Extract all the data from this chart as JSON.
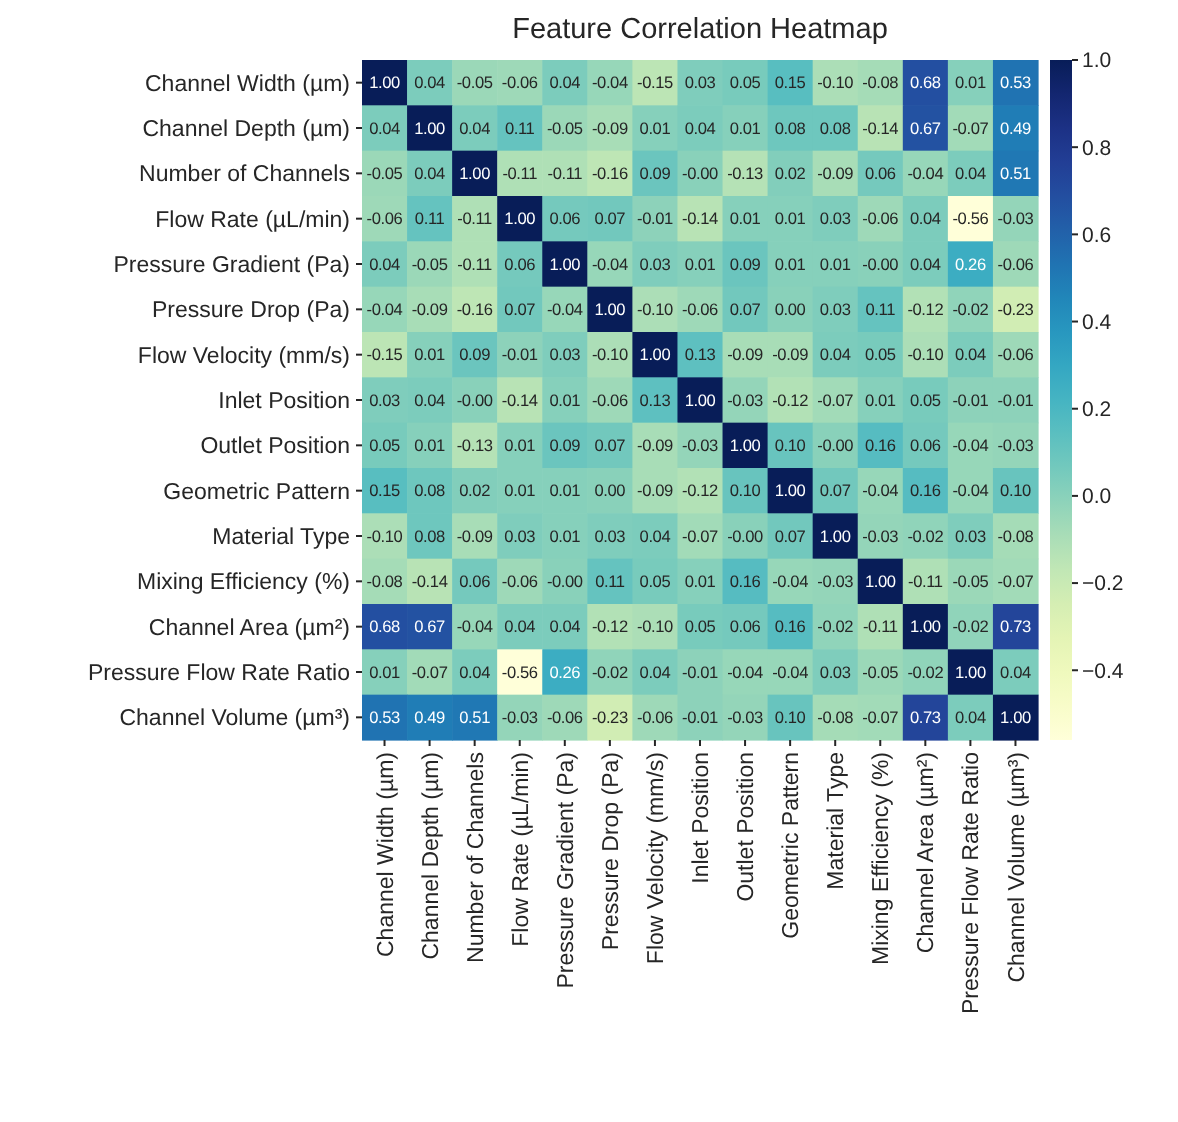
{
  "chart_data": {
    "type": "heatmap",
    "title": "Feature Correlation Heatmap",
    "categories": [
      "Channel Width (µm)",
      "Channel Depth (µm)",
      "Number of Channels",
      "Flow Rate (µL/min)",
      "Pressure Gradient (Pa)",
      "Pressure Drop (Pa)",
      "Flow Velocity (mm/s)",
      "Inlet Position",
      "Outlet Position",
      "Geometric Pattern",
      "Material Type",
      "Mixing Efficiency (%)",
      "Channel Area (µm²)",
      "Pressure Flow Rate Ratio",
      "Channel Volume (µm³)"
    ],
    "y_categories": [
      "Channel Width (µm)",
      "Channel Depth (µm)",
      "Number of Channels",
      "Flow Rate (µL/min)",
      "Pressure Gradient (Pa)",
      "Pressure Drop (Pa)",
      "Flow Velocity (mm/s)",
      "Inlet Position",
      "Outlet Position",
      "Geometric Pattern",
      "Material Type",
      "Mixing Efficiency (%)",
      "Channel Area (µm²)",
      "Pressure Flow Rate Ratio",
      "Channel Volume (µm³)"
    ],
    "cells": [
      [
        1.0,
        0.04,
        -0.05,
        -0.06,
        0.04,
        -0.04,
        -0.15,
        0.03,
        0.05,
        0.15,
        -0.1,
        -0.08,
        0.68,
        0.01,
        0.53
      ],
      [
        0.04,
        1.0,
        0.04,
        0.11,
        -0.05,
        -0.09,
        0.01,
        0.04,
        0.01,
        0.08,
        0.08,
        -0.14,
        0.67,
        -0.07,
        0.49
      ],
      [
        -0.05,
        0.04,
        1.0,
        -0.11,
        -0.11,
        -0.16,
        0.09,
        -0.0,
        -0.13,
        0.02,
        -0.09,
        0.06,
        -0.04,
        0.04,
        0.51
      ],
      [
        -0.06,
        0.11,
        -0.11,
        1.0,
        0.06,
        0.07,
        -0.01,
        -0.14,
        0.01,
        0.01,
        0.03,
        -0.06,
        0.04,
        -0.56,
        -0.03
      ],
      [
        0.04,
        -0.05,
        -0.11,
        0.06,
        1.0,
        -0.04,
        0.03,
        0.01,
        0.09,
        0.01,
        0.01,
        -0.0,
        0.04,
        0.26,
        -0.06
      ],
      [
        -0.04,
        -0.09,
        -0.16,
        0.07,
        -0.04,
        1.0,
        -0.1,
        -0.06,
        0.07,
        0.0,
        0.03,
        0.11,
        -0.12,
        -0.02,
        -0.23
      ],
      [
        -0.15,
        0.01,
        0.09,
        -0.01,
        0.03,
        -0.1,
        1.0,
        0.13,
        -0.09,
        -0.09,
        0.04,
        0.05,
        -0.1,
        0.04,
        -0.06
      ],
      [
        0.03,
        0.04,
        -0.0,
        -0.14,
        0.01,
        -0.06,
        0.13,
        1.0,
        -0.03,
        -0.12,
        -0.07,
        0.01,
        0.05,
        -0.01,
        -0.01
      ],
      [
        0.05,
        0.01,
        -0.13,
        0.01,
        0.09,
        0.07,
        -0.09,
        -0.03,
        1.0,
        0.1,
        -0.0,
        0.16,
        0.06,
        -0.04,
        -0.03
      ],
      [
        0.15,
        0.08,
        0.02,
        0.01,
        0.01,
        0.0,
        -0.09,
        -0.12,
        0.1,
        1.0,
        0.07,
        -0.04,
        0.16,
        -0.04,
        0.1
      ],
      [
        -0.1,
        0.08,
        -0.09,
        0.03,
        0.01,
        0.03,
        0.04,
        -0.07,
        -0.0,
        0.07,
        1.0,
        -0.03,
        -0.02,
        0.03,
        -0.08
      ],
      [
        -0.08,
        -0.14,
        0.06,
        -0.06,
        -0.0,
        0.11,
        0.05,
        0.01,
        0.16,
        -0.04,
        -0.03,
        1.0,
        -0.11,
        -0.05,
        -0.07
      ],
      [
        0.68,
        0.67,
        -0.04,
        0.04,
        0.04,
        -0.12,
        -0.1,
        0.05,
        0.06,
        0.16,
        -0.02,
        -0.11,
        1.0,
        -0.02,
        0.73
      ],
      [
        0.01,
        -0.07,
        0.04,
        -0.56,
        0.26,
        -0.02,
        0.04,
        -0.01,
        -0.04,
        -0.04,
        0.03,
        -0.05,
        -0.02,
        1.0,
        0.04
      ],
      [
        0.53,
        0.49,
        0.51,
        -0.03,
        -0.06,
        -0.23,
        -0.06,
        -0.01,
        -0.03,
        0.1,
        -0.08,
        -0.07,
        0.73,
        0.04,
        1.0
      ]
    ],
    "clim": [
      -0.56,
      1.0
    ],
    "cticks": [
      {
        "value": -0.4,
        "label": "−0.4"
      },
      {
        "value": -0.2,
        "label": "−0.2"
      },
      {
        "value": 0,
        "label": "0.0"
      },
      {
        "value": 0.2,
        "label": "0.2"
      },
      {
        "value": 0.4,
        "label": "0.4"
      },
      {
        "value": 0.6,
        "label": "0.6"
      },
      {
        "value": 0.8,
        "label": "0.8"
      },
      {
        "value": 1,
        "label": "1.0"
      }
    ],
    "cell_labels": [
      [
        "1.00",
        "0.04",
        "-0.05",
        "-0.06",
        "0.04",
        "-0.04",
        "-0.15",
        "0.03",
        "0.05",
        "0.15",
        "-0.10",
        "-0.08",
        "0.68",
        "0.01",
        "0.53"
      ],
      [
        "0.04",
        "1.00",
        "0.04",
        "0.11",
        "-0.05",
        "-0.09",
        "0.01",
        "0.04",
        "0.01",
        "0.08",
        "0.08",
        "-0.14",
        "0.67",
        "-0.07",
        "0.49"
      ],
      [
        "-0.05",
        "0.04",
        "1.00",
        "-0.11",
        "-0.11",
        "-0.16",
        "0.09",
        "-0.00",
        "-0.13",
        "0.02",
        "-0.09",
        "0.06",
        "-0.04",
        "0.04",
        "0.51"
      ],
      [
        "-0.06",
        "0.11",
        "-0.11",
        "1.00",
        "0.06",
        "0.07",
        "-0.01",
        "-0.14",
        "0.01",
        "0.01",
        "0.03",
        "-0.06",
        "0.04",
        "-0.56",
        "-0.03"
      ],
      [
        "0.04",
        "-0.05",
        "-0.11",
        "0.06",
        "1.00",
        "-0.04",
        "0.03",
        "0.01",
        "0.09",
        "0.01",
        "0.01",
        "-0.00",
        "0.04",
        "0.26",
        "-0.06"
      ],
      [
        "-0.04",
        "-0.09",
        "-0.16",
        "0.07",
        "-0.04",
        "1.00",
        "-0.10",
        "-0.06",
        "0.07",
        "0.00",
        "0.03",
        "0.11",
        "-0.12",
        "-0.02",
        "-0.23"
      ],
      [
        "-0.15",
        "0.01",
        "0.09",
        "-0.01",
        "0.03",
        "-0.10",
        "1.00",
        "0.13",
        "-0.09",
        "-0.09",
        "0.04",
        "0.05",
        "-0.10",
        "0.04",
        "-0.06"
      ],
      [
        "0.03",
        "0.04",
        "-0.00",
        "-0.14",
        "0.01",
        "-0.06",
        "0.13",
        "1.00",
        "-0.03",
        "-0.12",
        "-0.07",
        "0.01",
        "0.05",
        "-0.01",
        "-0.01"
      ],
      [
        "0.05",
        "0.01",
        "-0.13",
        "0.01",
        "0.09",
        "0.07",
        "-0.09",
        "-0.03",
        "1.00",
        "0.10",
        "-0.00",
        "0.16",
        "0.06",
        "-0.04",
        "-0.03"
      ],
      [
        "0.15",
        "0.08",
        "0.02",
        "0.01",
        "0.01",
        "0.00",
        "-0.09",
        "-0.12",
        "0.10",
        "1.00",
        "0.07",
        "-0.04",
        "0.16",
        "-0.04",
        "0.10"
      ],
      [
        "-0.10",
        "0.08",
        "-0.09",
        "0.03",
        "0.01",
        "0.03",
        "0.04",
        "-0.07",
        "-0.00",
        "0.07",
        "1.00",
        "-0.03",
        "-0.02",
        "0.03",
        "-0.08"
      ],
      [
        "-0.08",
        "-0.14",
        "0.06",
        "-0.06",
        "-0.00",
        "0.11",
        "0.05",
        "0.01",
        "0.16",
        "-0.04",
        "-0.03",
        "1.00",
        "-0.11",
        "-0.05",
        "-0.07"
      ],
      [
        "0.68",
        "0.67",
        "-0.04",
        "0.04",
        "0.04",
        "-0.12",
        "-0.10",
        "0.05",
        "0.06",
        "0.16",
        "-0.02",
        "-0.11",
        "1.00",
        "-0.02",
        "0.73"
      ],
      [
        "0.01",
        "-0.07",
        "0.04",
        "-0.56",
        "0.26",
        "-0.02",
        "0.04",
        "-0.01",
        "-0.04",
        "-0.04",
        "0.03",
        "-0.05",
        "-0.02",
        "1.00",
        "0.04"
      ],
      [
        "0.53",
        "0.49",
        "0.51",
        "-0.03",
        "-0.06",
        "-0.23",
        "-0.06",
        "-0.01",
        "-0.03",
        "0.10",
        "-0.08",
        "-0.07",
        "0.73",
        "0.04",
        "1.00"
      ]
    ]
  }
}
